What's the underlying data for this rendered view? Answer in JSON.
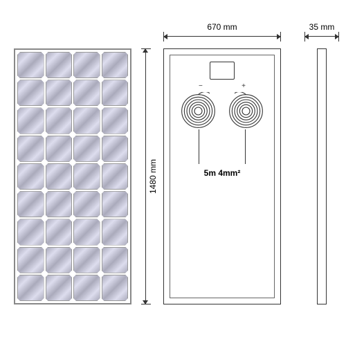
{
  "product": {
    "type": "solar-panel-technical-drawing"
  },
  "dimensions": {
    "width_label": "670 mm",
    "height_label": "1480 mm",
    "depth_label": "35 mm"
  },
  "cable": {
    "spec_label": "5m 4mm²",
    "polarity_minus": "−",
    "polarity_plus": "+"
  },
  "grid": {
    "cols": 4,
    "rows": 9
  },
  "colors": {
    "line": "#333333",
    "cell_border": "#999999",
    "background": "#ffffff"
  }
}
